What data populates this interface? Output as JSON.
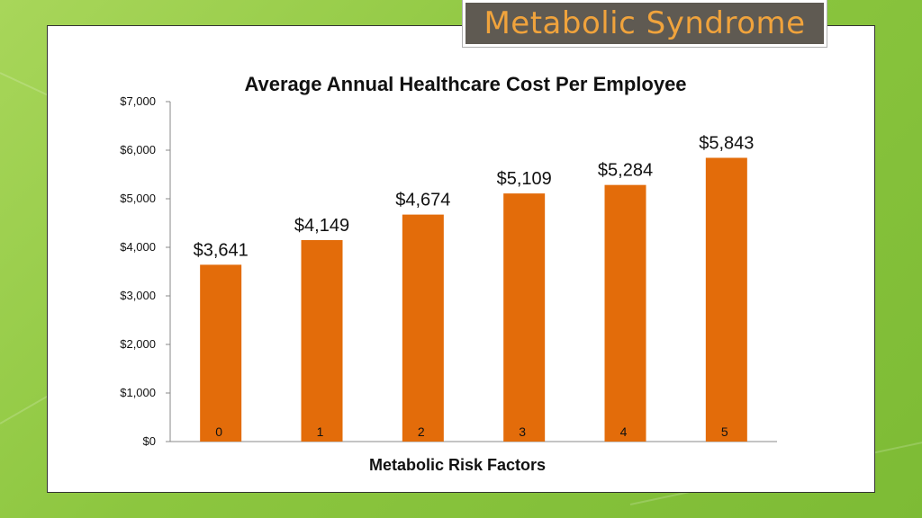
{
  "slide": {
    "title": "Metabolic Syndrome",
    "colors": {
      "background": "#8cc63f",
      "title_box": "#5f5a52",
      "title_text": "#f0a33c"
    }
  },
  "chart_data": {
    "type": "bar",
    "title": "Average Annual Healthcare Cost Per Employee",
    "xlabel": "Metabolic Risk Factors",
    "ylabel": "",
    "categories": [
      "0",
      "1",
      "2",
      "3",
      "4",
      "5"
    ],
    "values": [
      3641,
      4149,
      4674,
      5109,
      5284,
      5843
    ],
    "data_labels": [
      "$3,641",
      "$4,149",
      "$4,674",
      "$5,109",
      "$5,284",
      "$5,843"
    ],
    "ylim": [
      0,
      7000
    ],
    "yticks": [
      0,
      1000,
      2000,
      3000,
      4000,
      5000,
      6000,
      7000
    ],
    "ytick_labels": [
      "$0",
      "$1,000",
      "$2,000",
      "$3,000",
      "$4,000",
      "$5,000",
      "$6,000",
      "$7,000"
    ],
    "bar_color": "#e36c0a",
    "grid": false,
    "legend": "none"
  }
}
